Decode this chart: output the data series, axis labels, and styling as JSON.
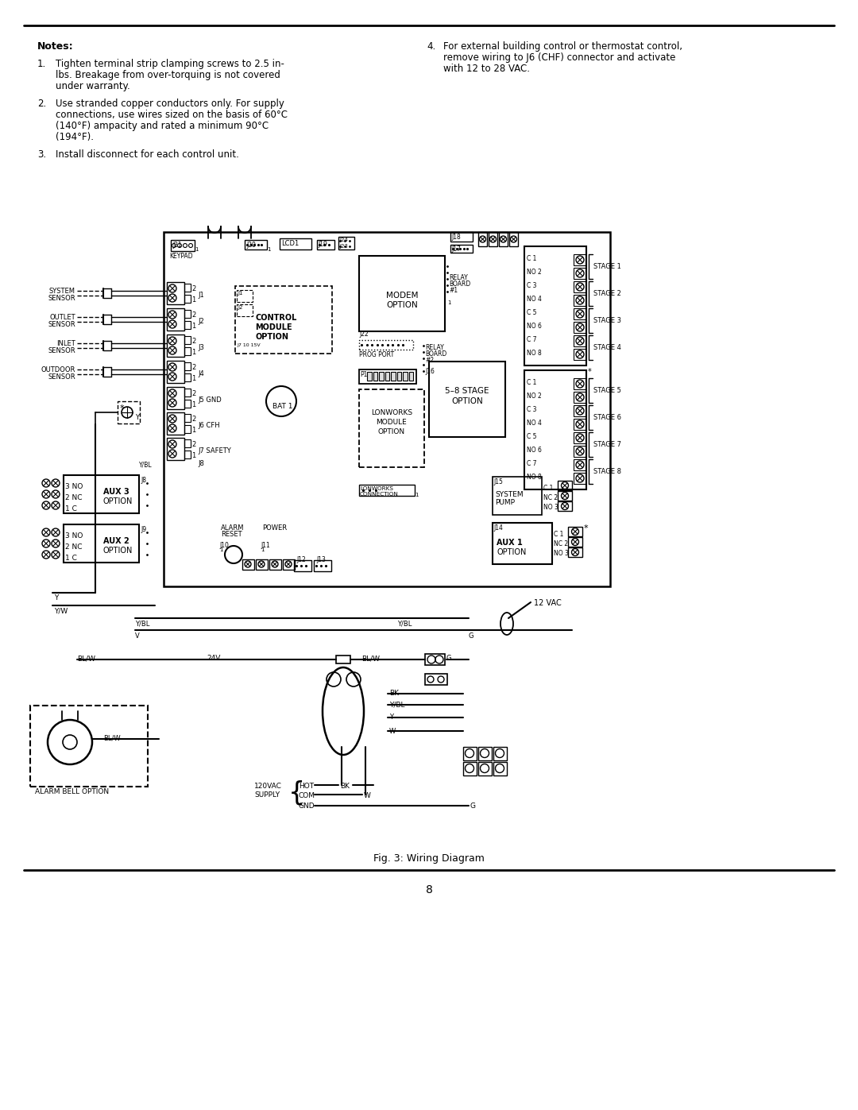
{
  "bg_color": "#ffffff",
  "line_color": "#000000",
  "title": "Fig. 3: Wiring Diagram",
  "page_number": "8",
  "notes_title": "Notes:",
  "note1_num": "1.",
  "note1_a": "Tighten terminal strip clamping screws to 2.5 in-",
  "note1_b": "lbs. Breakage from over-torquing is not covered",
  "note1_c": "under warranty.",
  "note2_num": "2.",
  "note2_a": "Use stranded copper conductors only. For supply",
  "note2_b": "connections, use wires sized on the basis of 60°C",
  "note2_c": "(140°F) ampacity and rated a minimum 90°C",
  "note2_d": "(194°F).",
  "note3_num": "3.",
  "note3_a": "Install disconnect for each control unit.",
  "note4_num": "4.",
  "note4_a": "For external building control or thermostat control,",
  "note4_b": "remove wiring to J6 (CHF) connector and activate",
  "note4_c": "with 12 to 28 VAC."
}
